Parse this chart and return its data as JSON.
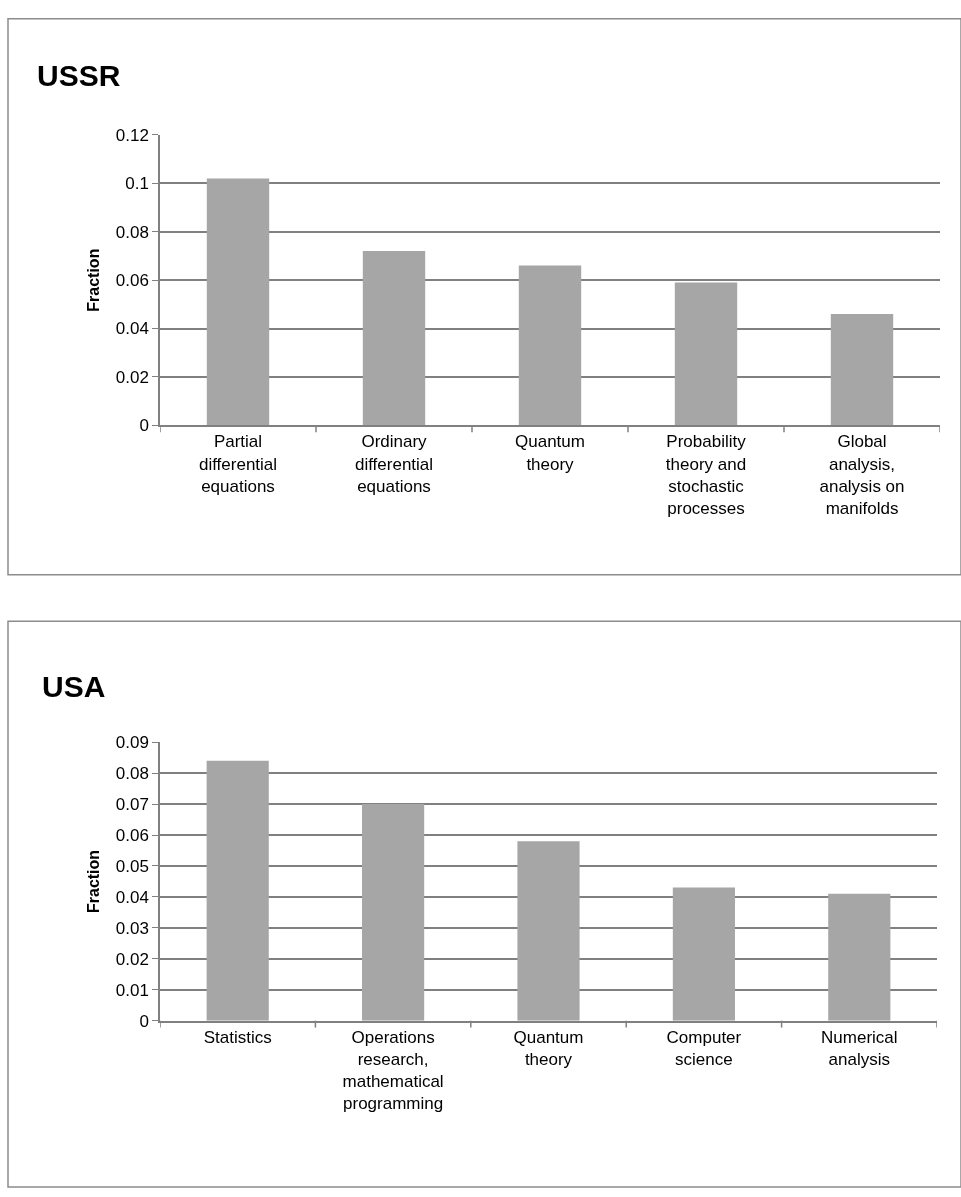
{
  "chart_data": [
    {
      "type": "bar",
      "title": "USSR",
      "ylabel": "Fraction",
      "categories": [
        "Partial differential equations",
        "Ordinary differential equations",
        "Quantum theory",
        "Probability theory and stochastic processes",
        "Global analysis, analysis on manifolds"
      ],
      "values": [
        0.102,
        0.072,
        0.066,
        0.059,
        0.046
      ],
      "color": "#a6a6a6",
      "ylim": [
        0,
        0.12
      ],
      "yticks": [
        0,
        0.02,
        0.04,
        0.06,
        0.08,
        0.1,
        0.12
      ],
      "grid": "y"
    },
    {
      "type": "bar",
      "title": "USA",
      "ylabel": "Fraction",
      "categories": [
        "Statistics",
        "Operations research, mathematical programming",
        "Quantum theory",
        "Computer science",
        "Numerical analysis"
      ],
      "values": [
        0.084,
        0.07,
        0.058,
        0.043,
        0.041
      ],
      "color": "#a6a6a6",
      "ylim": [
        0,
        0.09
      ],
      "yticks": [
        0,
        0.01,
        0.02,
        0.03,
        0.04,
        0.05,
        0.06,
        0.07,
        0.08,
        0.09
      ],
      "grid": "y"
    }
  ]
}
